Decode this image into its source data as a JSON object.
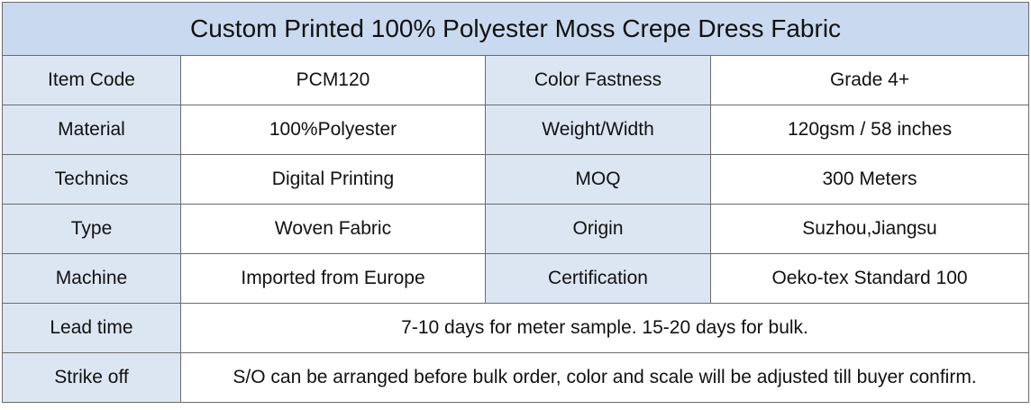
{
  "table": {
    "title": "Custom Printed 100% Polyester Moss Crepe Dress Fabric",
    "rows": [
      [
        "Item Code",
        "PCM120",
        "Color Fastness",
        "Grade 4+"
      ],
      [
        "Material",
        "100%Polyester",
        "Weight/Width",
        "120gsm / 58 inches"
      ],
      [
        "Technics",
        "Digital Printing",
        "MOQ",
        "300 Meters"
      ],
      [
        "Type",
        "Woven Fabric",
        "Origin",
        "Suzhou,Jiangsu"
      ],
      [
        "Machine",
        "Imported from Europe",
        "Certification",
        "Oeko-tex Standard 100"
      ],
      [
        "Lead time",
        "7-10 days for meter sample. 15-20 days for bulk."
      ],
      [
        "Strike off",
        "S/O can be arranged before bulk order, color and scale will be adjusted till buyer confirm."
      ]
    ]
  }
}
